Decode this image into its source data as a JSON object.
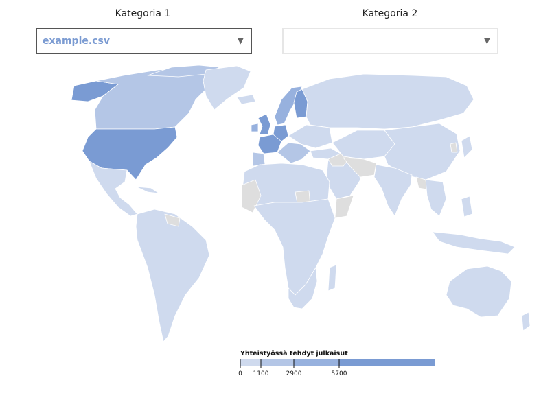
{
  "controls": {
    "category1_label": "Kategoria 1",
    "category2_label": "Kategoria 2",
    "category1_value": "example.csv",
    "category2_value": "",
    "caret": "▼"
  },
  "map": {
    "colors": {
      "no_data": "#dedede",
      "low": "#cfdaee",
      "mid_low": "#b4c6e6",
      "mid": "#97b1de",
      "high": "#7a9bd3"
    }
  },
  "legend": {
    "title": "Yhteistyössä tehdyt julkaisut",
    "thresholds": [
      "0",
      "1100",
      "2900",
      "5700"
    ],
    "colors": [
      "#cfdaee",
      "#b4c6e6",
      "#97b1de",
      "#7a9bd3"
    ]
  }
}
